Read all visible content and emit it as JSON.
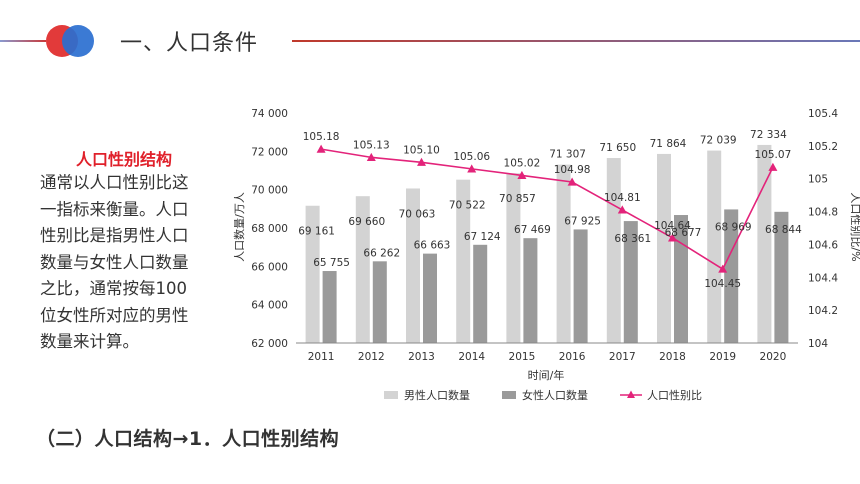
{
  "header": {
    "title": "一、人口条件"
  },
  "side": {
    "title": "人口性别结构",
    "text": "通常以人口性别比这一指标来衡量。人口性别比是指男性人口数量与女性人口数量之比，通常按每100位女性所对应的男性数量来计算。"
  },
  "footer": {
    "caption": "（二）人口结构→1．人口性别结构"
  },
  "chart_data": {
    "type": "bar",
    "categories": [
      "2011",
      "2012",
      "2013",
      "2014",
      "2015",
      "2016",
      "2017",
      "2018",
      "2019",
      "2020"
    ],
    "xlabel": "时间/年",
    "ylabel": "人口数量/万人",
    "ylabel_right": "人口性别比/%",
    "ylim": [
      62000,
      74000
    ],
    "ylim_right": [
      104,
      105.4
    ],
    "yticks": [
      "62 000",
      "64 000",
      "66 000",
      "68 000",
      "70 000",
      "72 000",
      "74 000"
    ],
    "yticks_right": [
      "104",
      "104.2",
      "104.4",
      "104.6",
      "104.8",
      "105",
      "105.2",
      "105.4"
    ],
    "series": [
      {
        "name": "男性人口数量",
        "type": "bar",
        "axis": "left",
        "color": "#d3d3d3",
        "values": [
          69161,
          69660,
          70063,
          70522,
          70857,
          71307,
          71650,
          71864,
          72039,
          72334
        ],
        "labels": [
          "69 161",
          "69 660",
          "70 063",
          "70 522",
          "70 857",
          "71 307",
          "71 650",
          "71 864",
          "72 039",
          "72 334"
        ]
      },
      {
        "name": "女性人口数量",
        "type": "bar",
        "axis": "left",
        "color": "#9a9a9a",
        "values": [
          65755,
          66262,
          66663,
          67124,
          67469,
          67925,
          68361,
          68677,
          68969,
          68844
        ],
        "labels": [
          "65 755",
          "66 262",
          "66 663",
          "67 124",
          "67 469",
          "67 925",
          "68 361",
          "68 677",
          "68 969",
          "68 844"
        ]
      },
      {
        "name": "人口性别比",
        "type": "line",
        "axis": "right",
        "color": "#e3237a",
        "values": [
          105.18,
          105.13,
          105.1,
          105.06,
          105.02,
          104.98,
          104.81,
          104.64,
          104.45,
          105.07
        ],
        "labels": [
          "105.18",
          "105.13",
          "105.10",
          "105.06",
          "105.02",
          "104.98",
          "104.81",
          "104.64",
          "104.45",
          "105.07"
        ]
      }
    ],
    "legend_position": "bottom"
  }
}
